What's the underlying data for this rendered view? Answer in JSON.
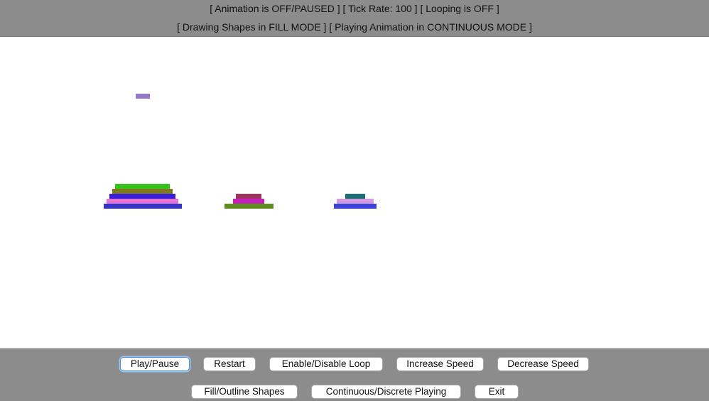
{
  "status": {
    "line1": "[ Animation is OFF/PAUSED ] [ Tick Rate: 100 ] [ Looping is OFF ]",
    "line2": "[ Drawing Shapes in FILL MODE ] [ Playing Animation in CONTINUOUS MODE ]"
  },
  "controls": {
    "play_pause": "Play/Pause",
    "restart": "Restart",
    "loop": "Enable/Disable Loop",
    "increase_speed": "Increase Speed",
    "decrease_speed": "Decrease Speed",
    "fill_outline": "Fill/Outline Shapes",
    "continuous_discrete": "Continuous/Discrete Playing",
    "exit": "Exit"
  },
  "colors": {
    "panel_bg": "#8c8c8c",
    "focus_ring": "#4a90d9",
    "disk_floating": "#9478c9",
    "disk_green": "#36c21c",
    "disk_olive": "#7f7a1c",
    "disk_blue": "#3b1fd8",
    "disk_pink": "#e574d6",
    "disk_navy": "#3434c4",
    "disk_maroon": "#a1345c",
    "disk_magenta": "#c61fbd",
    "disk_darkgreen": "#5e8e1c",
    "disk_teal": "#1e6e74",
    "disk_lavender": "#d39ae2",
    "disk_royal": "#3a44d6"
  }
}
